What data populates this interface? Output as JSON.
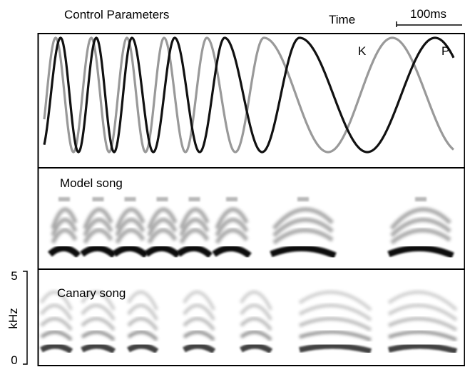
{
  "panels": [
    {
      "title": "Control Parameters",
      "scale_label": "Time",
      "scale_bar": "100ms",
      "curve_labels": [
        "K",
        "P"
      ]
    },
    {
      "title": "Model song"
    },
    {
      "title": "Canary song",
      "axis_label": "kHz",
      "ticks": [
        "5",
        "0"
      ]
    }
  ]
}
